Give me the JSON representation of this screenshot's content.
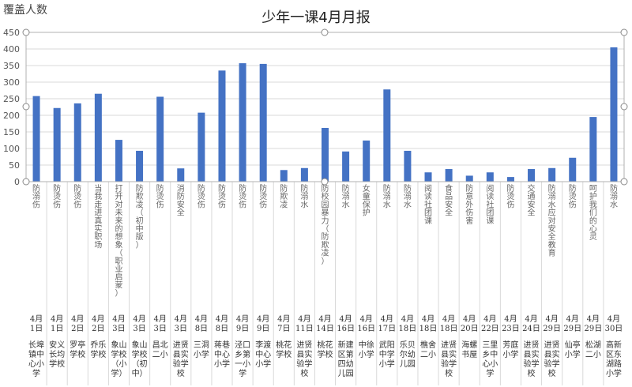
{
  "chart_data": {
    "type": "bar",
    "title": "少年一课4月月报",
    "ylabel": "覆盖人数",
    "ylim": [
      0,
      450
    ],
    "yticks": [
      0,
      50,
      100,
      150,
      200,
      250,
      300,
      350,
      400,
      450
    ],
    "grid": true,
    "bar_color": "#4472C4",
    "categories": [
      {
        "topic": "防溺伤",
        "date": "4月1日",
        "school": "长埠镇中心小学"
      },
      {
        "topic": "防烫伤",
        "date": "4月1日",
        "school": "安义长均学校"
      },
      {
        "topic": "防烫伤",
        "date": "4月2日",
        "school": "罗亭学校"
      },
      {
        "topic": "当我走进真实职场",
        "date": "4月2日",
        "school": "乔乐学校"
      },
      {
        "topic": "打开对未来的想象（职业启蒙）",
        "date": "4月3日",
        "school": "象山学校（小学）"
      },
      {
        "topic": "防欺凌（初中版）",
        "date": "4月3日",
        "school": "象山学校（初中）"
      },
      {
        "topic": "防烫伤",
        "date": "4月3日",
        "school": "昌北二小"
      },
      {
        "topic": "消防安全",
        "date": "4月3日",
        "school": "进贤县实验学校"
      },
      {
        "topic": "防烫伤",
        "date": "4月8日",
        "school": "三洞小学"
      },
      {
        "topic": "防烫伤",
        "date": "4月8日",
        "school": "蒋巷中心小学"
      },
      {
        "topic": "防烫伤",
        "date": "4月9日",
        "school": "泾口乡第一小学"
      },
      {
        "topic": "防烫伤",
        "date": "4月9日",
        "school": "李渡中心小学"
      },
      {
        "topic": "防欺凌",
        "date": "4月7日",
        "school": "桃花学校"
      },
      {
        "topic": "防溺水",
        "date": "4月11日",
        "school": "进贤县实验学校"
      },
      {
        "topic": "防校园暴力（防欺凌）",
        "date": "4月14日",
        "school": "桃花学校"
      },
      {
        "topic": "防溺水",
        "date": "4月16日",
        "school": "新建区第四幼儿园"
      },
      {
        "topic": "女童保护",
        "date": "4月16日",
        "school": "中徐小学"
      },
      {
        "topic": "防溺水",
        "date": "4月17日",
        "school": "武阳中学小学"
      },
      {
        "topic": "防溺水",
        "date": "4月18日",
        "school": "乐贝尔幼儿园"
      },
      {
        "topic": "阅读社团课",
        "date": "4月18日",
        "school": "樵舍二小"
      },
      {
        "topic": "食品安全",
        "date": "4月18日",
        "school": "进贤县实验学校"
      },
      {
        "topic": "防意外伤害",
        "date": "4月20日",
        "school": "海螺书屋"
      },
      {
        "topic": "阅读社团课",
        "date": "4月22日",
        "school": "三里乡中心小学"
      },
      {
        "topic": "防烫伤",
        "date": "4月23日",
        "school": "芳庭小学"
      },
      {
        "topic": "交通安全",
        "date": "4月24日",
        "school": "进贤县实验学校"
      },
      {
        "topic": "防溺水应对安全教育",
        "date": "4月29日",
        "school": "进贤县实验学校"
      },
      {
        "topic": "防烫伤",
        "date": "4月29日",
        "school": "仙亭小学"
      },
      {
        "topic": "呵护我们的心灵",
        "date": "4月29日",
        "school": "松湖二小"
      },
      {
        "topic": "防溺水",
        "date": "4月30日",
        "school": "高新区东湖路小学"
      }
    ],
    "values": [
      258,
      222,
      236,
      265,
      126,
      93,
      256,
      40,
      208,
      335,
      357,
      355,
      35,
      41,
      162,
      91,
      124,
      278,
      93,
      28,
      38,
      18,
      28,
      14,
      38,
      41,
      72,
      195,
      405
    ]
  }
}
